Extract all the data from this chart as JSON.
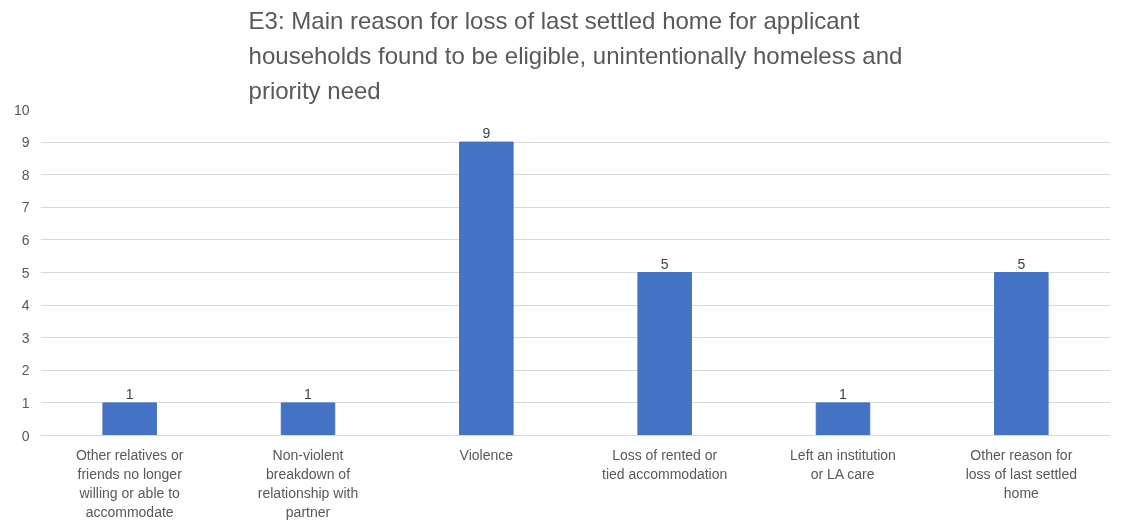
{
  "chart_data": {
    "type": "bar",
    "title": "E3: Main reason for loss of last settled home for applicant households found to be eligible, unintentionally homeless and priority need",
    "categories": [
      "Other relatives or friends no longer willing or able to accommodate",
      "Non-violent breakdown of relationship with partner",
      "Violence",
      "Loss of rented or tied accommodation",
      "Left an institution or LA care",
      "Other reason for loss of last settled home"
    ],
    "values": [
      1,
      1,
      9,
      5,
      1,
      5
    ],
    "color": "#4472c4",
    "ylim": [
      0,
      10
    ],
    "yticks": [
      0,
      1,
      2,
      3,
      4,
      5,
      6,
      7,
      8,
      9,
      10
    ],
    "grid": "y",
    "data_labels": true
  }
}
